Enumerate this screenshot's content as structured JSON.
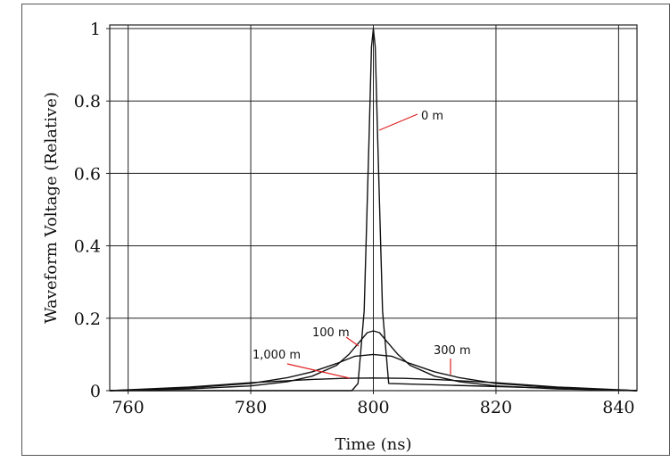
{
  "chart_data": {
    "type": "line",
    "title": "",
    "xlabel": "Time (ns)",
    "ylabel": "Waveform Voltage (Relative)",
    "xlim": [
      757,
      843
    ],
    "ylim": [
      0,
      1.01
    ],
    "grid": true,
    "x_ticks": [
      760,
      780,
      800,
      820,
      840
    ],
    "x_tick_labels": [
      "760",
      "780",
      "800",
      "820",
      "840"
    ],
    "y_ticks": [
      0,
      0.2,
      0.4,
      0.6,
      0.8,
      1
    ],
    "y_tick_labels": [
      "0",
      "0.2",
      "0.4",
      "0.6",
      "0.8",
      "1"
    ],
    "series": [
      {
        "name": "0 m",
        "x": [
          757,
          796.5,
          797.5,
          798.5,
          799.3,
          799.7,
          800,
          800.3,
          800.7,
          801.5,
          802.5,
          843
        ],
        "y": [
          0,
          0,
          0.02,
          0.22,
          0.7,
          0.95,
          1.0,
          0.95,
          0.7,
          0.22,
          0.02,
          0
        ]
      },
      {
        "name": "100 m",
        "x": [
          757,
          770,
          780,
          786,
          790,
          794,
          796,
          798,
          799,
          800,
          801,
          802,
          804,
          806,
          810,
          814,
          820,
          830,
          843
        ],
        "y": [
          0.0,
          0.005,
          0.013,
          0.025,
          0.04,
          0.07,
          0.1,
          0.14,
          0.16,
          0.165,
          0.16,
          0.14,
          0.1,
          0.07,
          0.04,
          0.025,
          0.013,
          0.005,
          0.0
        ]
      },
      {
        "name": "300 m",
        "x": [
          757,
          770,
          780,
          786,
          790,
          794,
          797,
          800,
          803,
          806,
          810,
          814,
          820,
          830,
          843
        ],
        "y": [
          0.0,
          0.008,
          0.02,
          0.036,
          0.052,
          0.075,
          0.095,
          0.1,
          0.095,
          0.075,
          0.052,
          0.036,
          0.02,
          0.008,
          0.0
        ]
      },
      {
        "name": "1,000 m",
        "x": [
          757,
          770,
          780,
          790,
          795,
          800,
          805,
          810,
          820,
          830,
          843
        ],
        "y": [
          0.0,
          0.01,
          0.022,
          0.031,
          0.034,
          0.035,
          0.034,
          0.031,
          0.022,
          0.01,
          0.0
        ]
      }
    ],
    "annotations": [
      {
        "text": "0 m",
        "series": "0 m"
      },
      {
        "text": "100 m",
        "series": "100 m"
      },
      {
        "text": "300 m",
        "series": "300 m"
      },
      {
        "text": "1,000 m",
        "series": "1,000 m"
      }
    ],
    "colors": {
      "series": "#111111",
      "grid": "#222222",
      "leader": "#e02020"
    }
  }
}
